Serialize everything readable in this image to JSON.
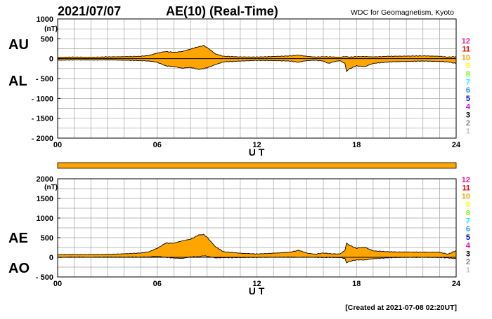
{
  "header": {
    "date": "2021/07/07",
    "title": "AE(10) (Real-Time)",
    "source": "WDC for Geomagnetism, Kyoto"
  },
  "footer": {
    "created": "[Created at 2021-07-08 02:20UT]"
  },
  "colors": {
    "fill": "#ffa500",
    "line": "#000000",
    "grid": "#a0a0a0",
    "coverage_bar": "#ffa500"
  },
  "station_legend": {
    "labels": [
      "12",
      "11",
      "10",
      "9",
      "8",
      "7",
      "6",
      "5",
      "4",
      "3",
      "2",
      "1"
    ],
    "colors": [
      "#ff1493",
      "#ff0000",
      "#ffa500",
      "#ffff00",
      "#7cfc00",
      "#00ffff",
      "#1e90ff",
      "#0000cd",
      "#dd00dd",
      "#000000",
      "#808080",
      "#c8c8c8"
    ]
  },
  "chart_data": [
    {
      "type": "area",
      "name": "AU/AL panel",
      "ylabel_unit": "(nT)",
      "upper_label": "AU",
      "lower_label": "AL",
      "xlabel": "U T",
      "x_ticks": [
        "00",
        "06",
        "12",
        "18",
        "24"
      ],
      "xlim": [
        0,
        24
      ],
      "y_ticks": [
        "1000",
        "500",
        "0",
        "- 500",
        "- 1000",
        "- 1500",
        "- 2000"
      ],
      "ylim": [
        -2000,
        1000
      ],
      "grid": true,
      "series": [
        {
          "name": "AU",
          "x": [
            0,
            1,
            2,
            3,
            4,
            5,
            5.5,
            6,
            6.5,
            7,
            7.5,
            8,
            8.5,
            8.8,
            9,
            9.5,
            10,
            11,
            12,
            13,
            14,
            14.5,
            15,
            15.5,
            16,
            16.5,
            17,
            17.3,
            17.6,
            18,
            18.5,
            19,
            20,
            21,
            22,
            23,
            23.5,
            24
          ],
          "values": [
            30,
            40,
            35,
            45,
            50,
            60,
            80,
            140,
            180,
            160,
            180,
            240,
            300,
            330,
            280,
            120,
            60,
            45,
            40,
            55,
            70,
            90,
            60,
            40,
            50,
            45,
            35,
            55,
            40,
            50,
            55,
            45,
            60,
            65,
            70,
            60,
            40,
            50
          ]
        },
        {
          "name": "AL",
          "x": [
            0,
            1,
            2,
            3,
            4,
            5,
            5.5,
            6,
            6.5,
            7,
            7.5,
            8,
            8.5,
            8.8,
            9,
            9.5,
            10,
            11,
            12,
            13,
            14,
            14.5,
            15,
            15.5,
            16,
            16.3,
            16.6,
            17,
            17.3,
            17.4,
            17.6,
            18,
            18.5,
            19,
            20,
            21,
            22,
            23,
            23.5,
            24
          ],
          "values": [
            -40,
            -30,
            -35,
            -30,
            -40,
            -50,
            -60,
            -90,
            -180,
            -200,
            -240,
            -220,
            -270,
            -250,
            -230,
            -150,
            -80,
            -60,
            -45,
            -50,
            -60,
            -90,
            -50,
            -40,
            -60,
            -120,
            -80,
            -50,
            -120,
            -320,
            -250,
            -180,
            -200,
            -120,
            -80,
            -70,
            -60,
            -70,
            -80,
            -120
          ]
        }
      ]
    },
    {
      "type": "area",
      "name": "AE/AO panel",
      "ylabel_unit": "(nT)",
      "upper_label": "AE",
      "lower_label": "AO",
      "xlabel": "U T",
      "x_ticks": [
        "00",
        "06",
        "12",
        "18",
        "24"
      ],
      "xlim": [
        0,
        24
      ],
      "y_ticks": [
        "2000",
        "1500",
        "1000",
        "500",
        "0",
        "- 500"
      ],
      "ylim": [
        -500,
        2000
      ],
      "grid": true,
      "series": [
        {
          "name": "AE",
          "x": [
            0,
            1,
            2,
            3,
            4,
            5,
            5.5,
            6,
            6.5,
            7,
            7.5,
            8,
            8.5,
            8.8,
            9,
            9.5,
            10,
            11,
            12,
            13,
            14,
            14.5,
            15,
            15.5,
            16,
            16.5,
            17,
            17.3,
            17.4,
            17.6,
            18,
            18.5,
            19,
            20,
            21,
            22,
            23,
            23.5,
            24
          ],
          "values": [
            70,
            70,
            70,
            75,
            90,
            110,
            140,
            230,
            360,
            360,
            420,
            460,
            570,
            580,
            510,
            270,
            140,
            105,
            85,
            105,
            130,
            180,
            110,
            80,
            110,
            90,
            85,
            175,
            360,
            300,
            230,
            255,
            165,
            140,
            135,
            130,
            130,
            80,
            170
          ]
        },
        {
          "name": "AO",
          "x": [
            0,
            1,
            2,
            3,
            4,
            5,
            5.5,
            6,
            6.5,
            7,
            7.5,
            8,
            8.5,
            8.8,
            9,
            9.5,
            10,
            11,
            12,
            13,
            14,
            14.5,
            15,
            15.5,
            16,
            16.5,
            17,
            17.3,
            17.4,
            17.6,
            18,
            18.5,
            19,
            20,
            21,
            22,
            23,
            23.5,
            24
          ],
          "values": [
            -5,
            5,
            0,
            7,
            5,
            5,
            10,
            25,
            0,
            -20,
            -30,
            10,
            15,
            40,
            25,
            -15,
            -10,
            -7,
            -2,
            2,
            5,
            0,
            5,
            0,
            -5,
            -5,
            -5,
            -30,
            -140,
            -100,
            -65,
            -70,
            -35,
            -10,
            -2,
            0,
            -5,
            -15,
            -35
          ]
        }
      ]
    }
  ]
}
